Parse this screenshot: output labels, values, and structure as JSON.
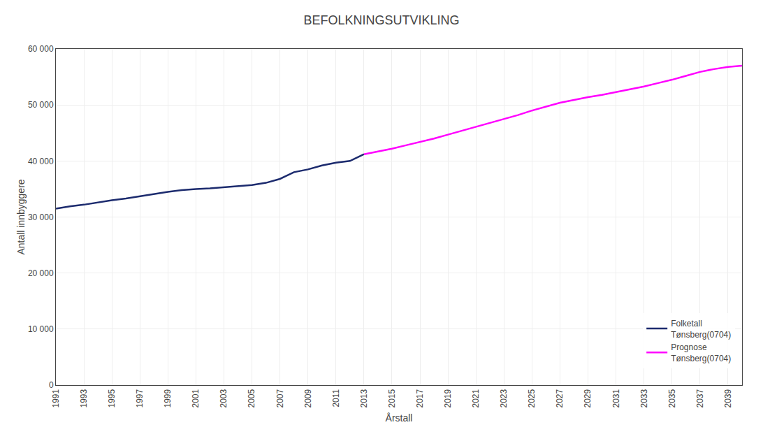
{
  "chart_data": {
    "type": "line",
    "title": "BEFOLKNINGSUTVIKLING",
    "ylabel": "Antall innbyggere",
    "xlabel": "Årstall",
    "series": [
      {
        "name": "Folketall\nTønsberg(0704)",
        "color": "#1C2B6E",
        "x": [
          1991,
          1992,
          1993,
          1994,
          1995,
          1996,
          1997,
          1998,
          1999,
          2000,
          2001,
          2002,
          2003,
          2004,
          2005,
          2006,
          2007,
          2008,
          2009,
          2010,
          2011,
          2012,
          2013
        ],
        "values": [
          31500,
          31900,
          32200,
          32600,
          33000,
          33300,
          33700,
          34100,
          34500,
          34800,
          35000,
          35100,
          35300,
          35500,
          35700,
          36100,
          36800,
          38000,
          38500,
          39200,
          39700,
          40000,
          41200
        ]
      },
      {
        "name": "Prognose\nTønsberg(0704)",
        "color": "#FF00FF",
        "x": [
          2013,
          2014,
          2015,
          2016,
          2017,
          2018,
          2019,
          2020,
          2021,
          2022,
          2023,
          2024,
          2025,
          2026,
          2027,
          2028,
          2029,
          2030,
          2031,
          2032,
          2033,
          2034,
          2035,
          2036,
          2037,
          2038,
          2039,
          2040
        ],
        "values": [
          41200,
          41700,
          42200,
          42800,
          43400,
          44000,
          44700,
          45400,
          46100,
          46800,
          47500,
          48200,
          49000,
          49700,
          50400,
          50900,
          51400,
          51800,
          52300,
          52800,
          53300,
          53900,
          54500,
          55200,
          55900,
          56400,
          56800,
          57000
        ]
      }
    ],
    "xlim": [
      1991,
      2040
    ],
    "xticks": [
      1991,
      1993,
      1995,
      1997,
      1999,
      2001,
      2003,
      2005,
      2007,
      2009,
      2011,
      2013,
      2015,
      2017,
      2019,
      2021,
      2023,
      2025,
      2027,
      2029,
      2031,
      2033,
      2035,
      2037,
      2039
    ],
    "ylim": [
      0,
      60000
    ],
    "yticks": [
      0,
      {
        "value": 10000,
        "label": "10 000"
      },
      {
        "value": 20000,
        "label": "20 000"
      },
      {
        "value": 30000,
        "label": "30 000"
      },
      {
        "value": 40000,
        "label": "40 000"
      },
      {
        "value": 50000,
        "label": "50 000"
      },
      {
        "value": 60000,
        "label": "60 000"
      }
    ],
    "grid": true,
    "legend": "lower right"
  }
}
